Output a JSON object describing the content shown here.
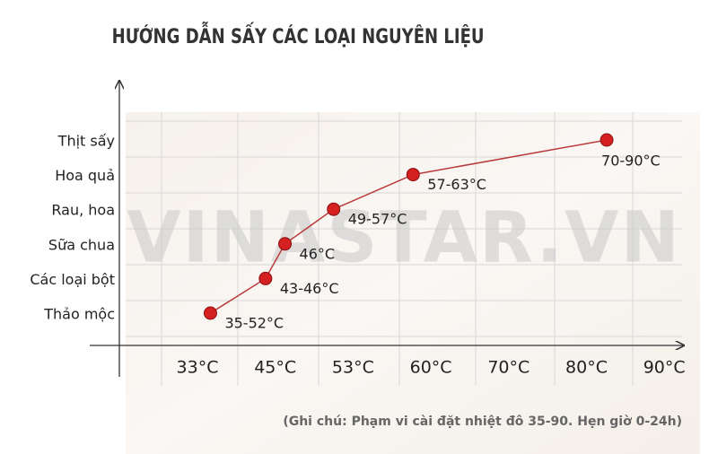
{
  "chart_data": {
    "type": "line",
    "title": "HƯỚNG DẪN SẤY CÁC LOẠI NGUYÊN LIỆU",
    "categories": [
      "Thảo mộc",
      "Các loại bột",
      "Sữa chua",
      "Rau, hoa",
      "Hoa quả",
      "Thịt sấy"
    ],
    "values": [
      35,
      43.5,
      46,
      51,
      58.4,
      82.6
    ],
    "value_labels": [
      "35-52°C",
      "43-46°C",
      "46°C",
      "49-57°C",
      "57-63°C",
      "70-90°C"
    ],
    "color": "#d42020",
    "xlim": [
      21,
      92
    ],
    "xticks": [
      {
        "value": 33,
        "label": "33°C"
      },
      {
        "value": 45,
        "label": "45°C"
      },
      {
        "value": 53,
        "label": "53°C"
      },
      {
        "value": 60,
        "label": "60°C"
      },
      {
        "value": 70,
        "label": "70°C"
      },
      {
        "value": 80,
        "label": "80°C"
      },
      {
        "value": 90,
        "label": "90°C"
      }
    ],
    "watermark": "VINASTAR.VN",
    "note": "(Ghi chú: Phạm vi cài đặt nhiệt đô 35-90. Hẹn giờ 0-24h)"
  }
}
